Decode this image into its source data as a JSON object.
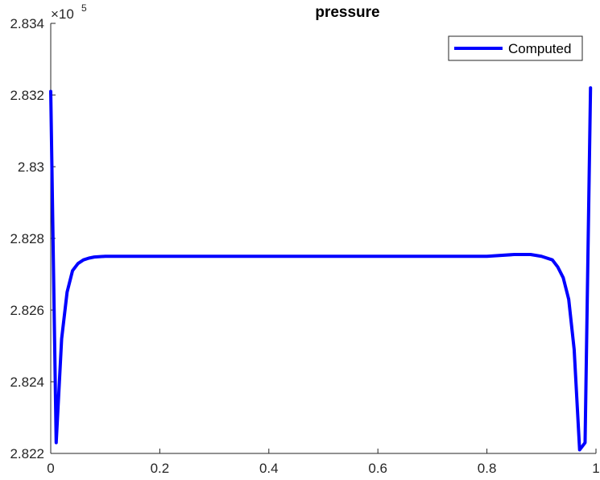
{
  "chart_data": {
    "type": "line",
    "title": "pressure",
    "xlabel": "",
    "ylabel": "",
    "y_exponent_label": "×10",
    "y_exponent": "5",
    "xlim": [
      0,
      1
    ],
    "ylim": [
      2.822,
      2.834
    ],
    "x_ticks": [
      0,
      0.2,
      0.4,
      0.6,
      0.8,
      1
    ],
    "x_tick_labels": [
      "0",
      "0.2",
      "0.4",
      "0.6",
      "0.8",
      "1"
    ],
    "y_ticks": [
      2.822,
      2.824,
      2.826,
      2.828,
      2.83,
      2.832,
      2.834
    ],
    "y_tick_labels": [
      "2.822",
      "2.824",
      "2.826",
      "2.828",
      "2.83",
      "2.832",
      "2.834"
    ],
    "grid": false,
    "legend_position": "top-right",
    "series": [
      {
        "name": "Computed",
        "color": "#0000ff",
        "x": [
          0,
          0.01,
          0.02,
          0.03,
          0.04,
          0.05,
          0.06,
          0.07,
          0.08,
          0.1,
          0.15,
          0.2,
          0.3,
          0.4,
          0.5,
          0.6,
          0.7,
          0.8,
          0.85,
          0.88,
          0.9,
          0.92,
          0.93,
          0.94,
          0.95,
          0.96,
          0.97,
          0.98,
          0.99
        ],
        "y": [
          2.8321,
          2.8223,
          2.8252,
          2.8265,
          2.8271,
          2.8273,
          2.8274,
          2.82745,
          2.82748,
          2.8275,
          2.8275,
          2.8275,
          2.8275,
          2.8275,
          2.8275,
          2.8275,
          2.8275,
          2.8275,
          2.82755,
          2.82755,
          2.8275,
          2.8274,
          2.8272,
          2.8269,
          2.8263,
          2.8249,
          2.8221,
          2.8223,
          2.8322
        ]
      }
    ]
  }
}
